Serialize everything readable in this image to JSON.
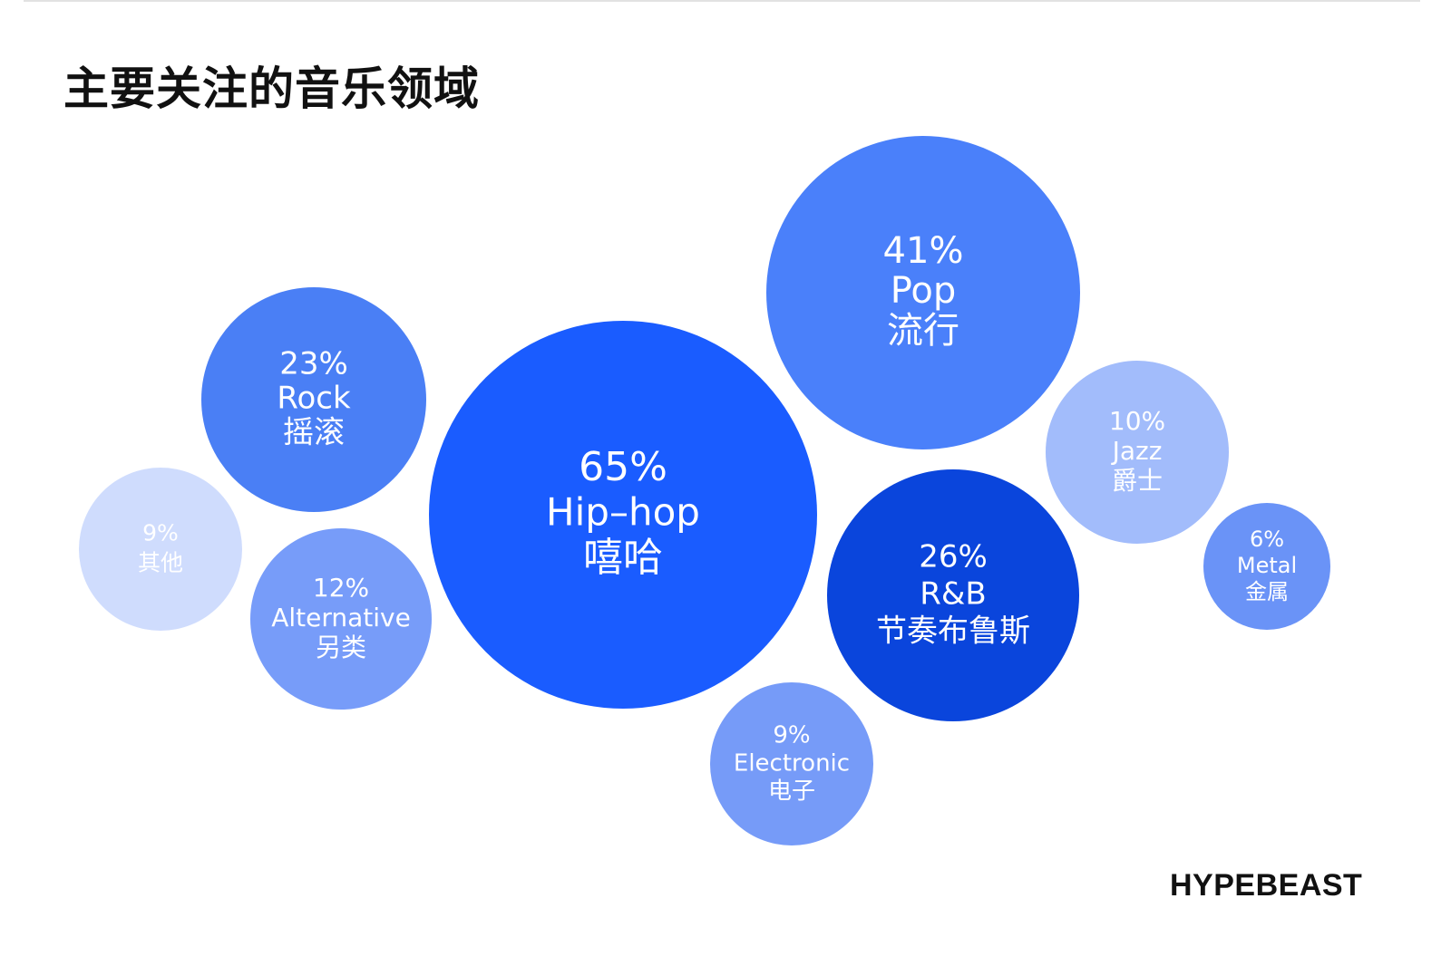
{
  "chart_title": "主要关注的音乐领域",
  "brand": "HYPEBEAST",
  "chart_data": {
    "type": "bubble",
    "unit": "%",
    "items": [
      {
        "value": 65,
        "percent_label": "65%",
        "name_en": "Hip–hop",
        "name_zh": "嘻哈",
        "color": "#1a5cff"
      },
      {
        "value": 41,
        "percent_label": "41%",
        "name_en": "Pop",
        "name_zh": "流行",
        "color": "#4a80fa"
      },
      {
        "value": 26,
        "percent_label": "26%",
        "name_en": "R&B",
        "name_zh": "节奏布鲁斯",
        "color": "#0a45dc"
      },
      {
        "value": 23,
        "percent_label": "23%",
        "name_en": "Rock",
        "name_zh": "摇滚",
        "color": "#4a7ff5"
      },
      {
        "value": 12,
        "percent_label": "12%",
        "name_en": "Alternative",
        "name_zh": "另类",
        "color": "#779cf9"
      },
      {
        "value": 10,
        "percent_label": "10%",
        "name_en": "Jazz",
        "name_zh": "爵士",
        "color": "#a2bcfb"
      },
      {
        "value": 9,
        "percent_label": "9%",
        "name_en": "Electronic",
        "name_zh": "电子",
        "color": "#769bf8"
      },
      {
        "value": 9,
        "percent_label": "9%",
        "name_en": "",
        "name_zh": "其他",
        "color": "#cfdcfd"
      },
      {
        "value": 6,
        "percent_label": "6%",
        "name_en": "Metal",
        "name_zh": "金属",
        "color": "#6a93f7"
      }
    ]
  }
}
